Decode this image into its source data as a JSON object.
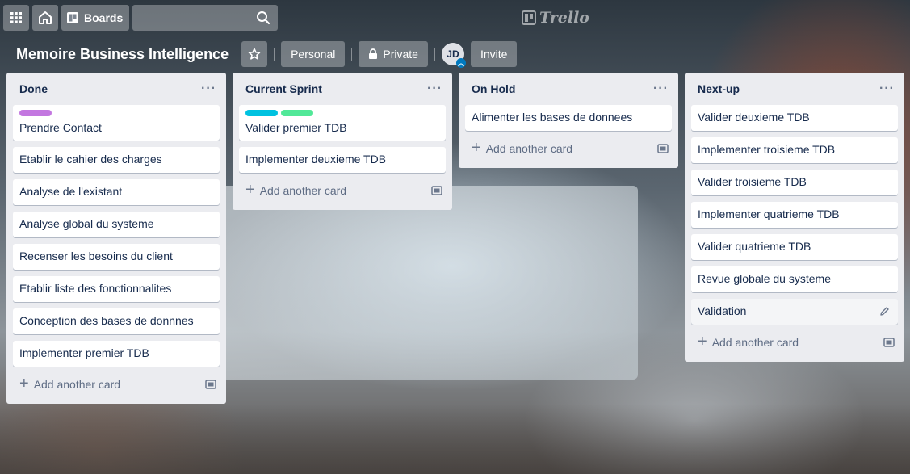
{
  "header": {
    "boards_label": "Boards",
    "logo_text": "Trello"
  },
  "board": {
    "title": "Memoire Business Intelligence",
    "team_label": "Personal",
    "visibility_label": "Private",
    "member_initials": "JD",
    "invite_label": "Invite"
  },
  "add_card_label": "Add another card",
  "lists": [
    {
      "title": "Done",
      "cards": [
        {
          "text": "Prendre Contact",
          "labels": [
            "#c377e0"
          ]
        },
        {
          "text": "Etablir le cahier des charges"
        },
        {
          "text": "Analyse de l'existant"
        },
        {
          "text": "Analyse global du systeme"
        },
        {
          "text": "Recenser les besoins du client"
        },
        {
          "text": "Etablir liste des fonctionnalites"
        },
        {
          "text": "Conception des bases de donnnes"
        },
        {
          "text": "Implementer premier TDB"
        }
      ]
    },
    {
      "title": "Current Sprint",
      "cards": [
        {
          "text": "Valider premier TDB",
          "labels": [
            "#00c2e0",
            "#51e898"
          ]
        },
        {
          "text": "Implementer deuxieme TDB"
        }
      ]
    },
    {
      "title": "On Hold",
      "cards": [
        {
          "text": "Alimenter les bases de donnees"
        }
      ]
    },
    {
      "title": "Next-up",
      "cards": [
        {
          "text": "Valider deuxieme TDB"
        },
        {
          "text": "Implementer troisieme TDB"
        },
        {
          "text": "Valider troisieme TDB"
        },
        {
          "text": "Implementer quatrieme TDB"
        },
        {
          "text": "Valider quatrieme TDB"
        },
        {
          "text": "Revue globale du systeme"
        },
        {
          "text": "Validation",
          "hover": true
        }
      ]
    }
  ],
  "colors": {
    "list_bg": "#ebecf0",
    "card_text": "#172b4d",
    "muted": "#5e6c84"
  }
}
